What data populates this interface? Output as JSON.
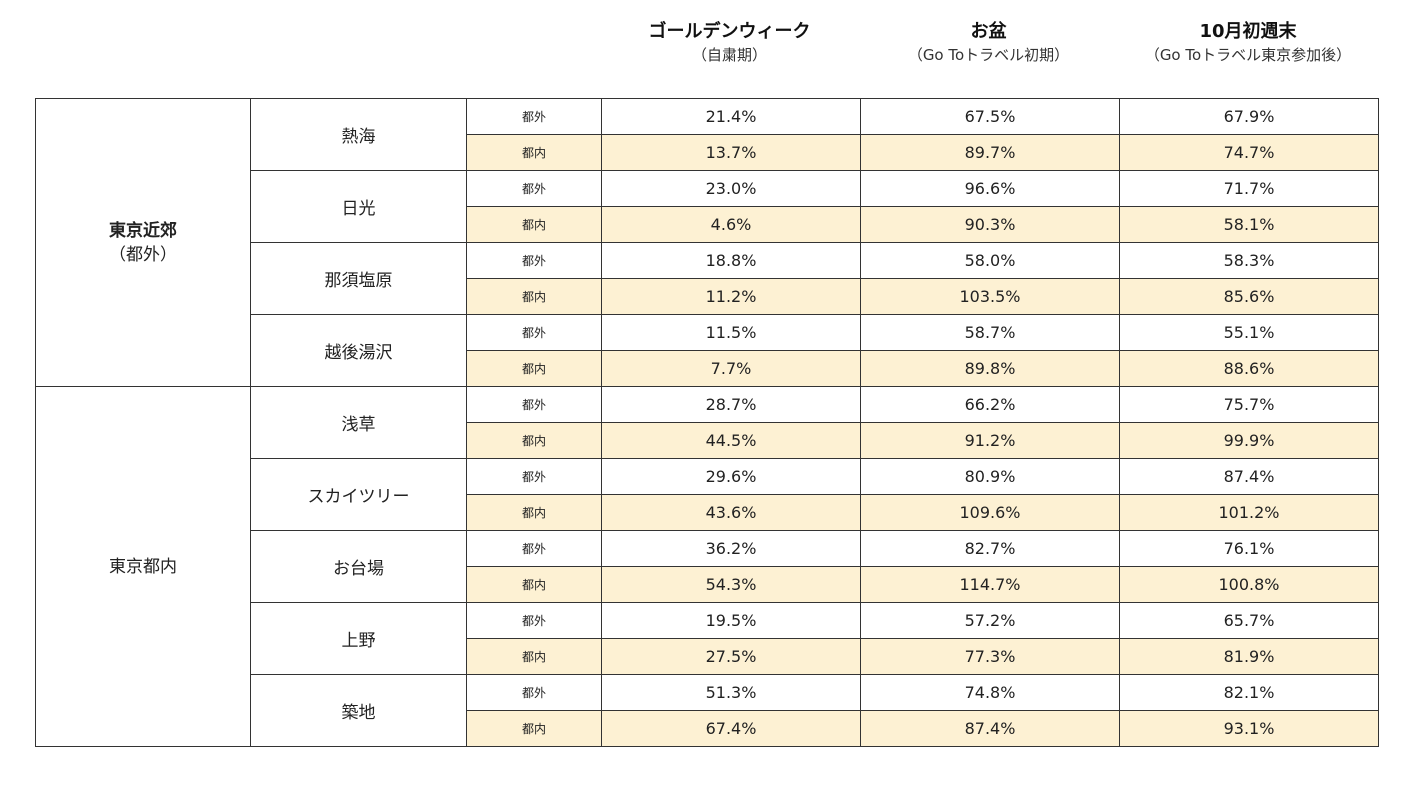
{
  "columns": [
    {
      "title": "ゴールデンウィーク",
      "subtitle": "（自粛期）"
    },
    {
      "title": "お盆",
      "subtitle": "（Go Toトラベル初期）"
    },
    {
      "title": "10月初週末",
      "subtitle": "（Go Toトラベル東京参加後）"
    }
  ],
  "origin_labels": {
    "outside": "都外",
    "inside": "都内"
  },
  "regions": [
    {
      "name": "東京近郊",
      "sub": "（都外）",
      "places": [
        {
          "name": "熱海",
          "outside": [
            "21.4%",
            "67.5%",
            "67.9%"
          ],
          "inside": [
            "13.7%",
            "89.7%",
            "74.7%"
          ]
        },
        {
          "name": "日光",
          "outside": [
            "23.0%",
            "96.6%",
            "71.7%"
          ],
          "inside": [
            "4.6%",
            "90.3%",
            "58.1%"
          ]
        },
        {
          "name": "那須塩原",
          "outside": [
            "18.8%",
            "58.0%",
            "58.3%"
          ],
          "inside": [
            "11.2%",
            "103.5%",
            "85.6%"
          ]
        },
        {
          "name": "越後湯沢",
          "outside": [
            "11.5%",
            "58.7%",
            "55.1%"
          ],
          "inside": [
            "7.7%",
            "89.8%",
            "88.6%"
          ]
        }
      ]
    },
    {
      "name": "東京都内",
      "sub": "",
      "places": [
        {
          "name": "浅草",
          "outside": [
            "28.7%",
            "66.2%",
            "75.7%"
          ],
          "inside": [
            "44.5%",
            "91.2%",
            "99.9%"
          ]
        },
        {
          "name": "スカイツリー",
          "outside": [
            "29.6%",
            "80.9%",
            "87.4%"
          ],
          "inside": [
            "43.6%",
            "109.6%",
            "101.2%"
          ]
        },
        {
          "name": "お台場",
          "outside": [
            "36.2%",
            "82.7%",
            "76.1%"
          ],
          "inside": [
            "54.3%",
            "114.7%",
            "100.8%"
          ]
        },
        {
          "name": "上野",
          "outside": [
            "19.5%",
            "57.2%",
            "65.7%"
          ],
          "inside": [
            "27.5%",
            "77.3%",
            "81.9%"
          ]
        },
        {
          "name": "築地",
          "outside": [
            "51.3%",
            "74.8%",
            "82.1%"
          ],
          "inside": [
            "67.4%",
            "87.4%",
            "93.1%"
          ]
        }
      ]
    }
  ],
  "colors": {
    "inside_row_bg": "#fdf1d3",
    "border": "#333333"
  }
}
